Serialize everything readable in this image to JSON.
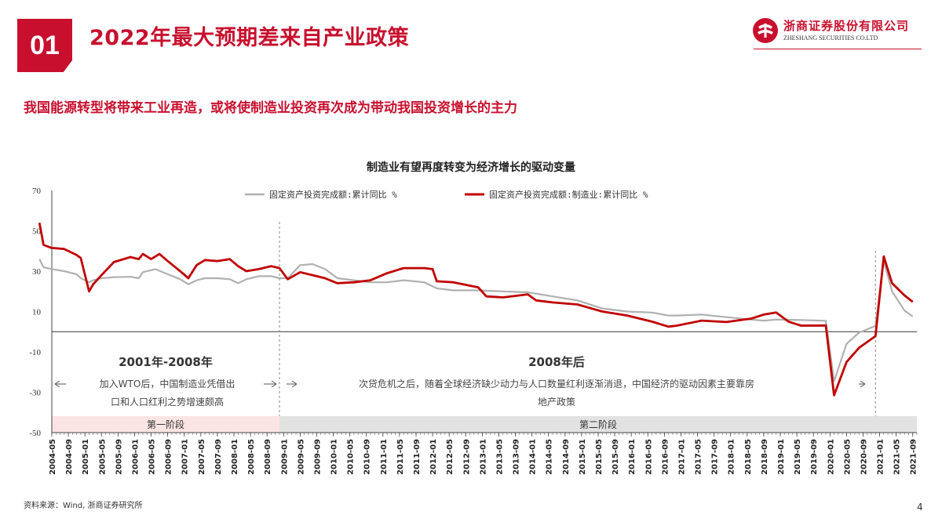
{
  "header": {
    "section_number": "01",
    "title": "2022年最大预期差来自产业政策",
    "logo_cn": "浙商证券股份有限公司",
    "logo_en": "ZHESHANG SECURITIES CO.LTD"
  },
  "subtitle": "我国能源转型将带来工业再造，或将使制造业投资再次成为带动我国投资增长的主力",
  "chart_data": {
    "type": "line",
    "title": "制造业有望再度转变为经济增长的驱动变量",
    "y_ticks": [
      70,
      50,
      30,
      10,
      -10,
      -30,
      -50
    ],
    "ylim": [
      -50,
      70
    ],
    "x_tick_labels": [
      "2004-05",
      "2004-09",
      "2005-01",
      "2005-05",
      "2005-09",
      "2006-01",
      "2006-05",
      "2006-09",
      "2007-01",
      "2007-05",
      "2007-09",
      "2008-01",
      "2008-05",
      "2008-09",
      "2009-01",
      "2009-05",
      "2009-09",
      "2010-01",
      "2010-05",
      "2010-09",
      "2011-01",
      "2011-05",
      "2011-09",
      "2012-01",
      "2012-05",
      "2012-09",
      "2013-01",
      "2013-05",
      "2013-09",
      "2014-01",
      "2014-05",
      "2014-09",
      "2015-01",
      "2015-05",
      "2015-09",
      "2016-01",
      "2016-05",
      "2016-09",
      "2017-01",
      "2017-05",
      "2017-09",
      "2018-01",
      "2018-05",
      "2018-09",
      "2019-01",
      "2019-05",
      "2019-09",
      "2020-01",
      "2020-05",
      "2020-09",
      "2021-01",
      "2021-05",
      "2021-09"
    ],
    "legend": "top",
    "series": [
      {
        "name": "固定资产投资完成额:累计同比 %",
        "color": "#b0b0b0",
        "points": [
          [
            "2004-02",
            36
          ],
          [
            "2004-03",
            32
          ],
          [
            "2004-05",
            31
          ],
          [
            "2004-08",
            30
          ],
          [
            "2004-11",
            28.5
          ],
          [
            "2004-12",
            26.5
          ],
          [
            "2005-02",
            24.5
          ],
          [
            "2005-03",
            25.5
          ],
          [
            "2005-05",
            26.5
          ],
          [
            "2005-08",
            27
          ],
          [
            "2005-12",
            27.2
          ],
          [
            "2006-02",
            26.5
          ],
          [
            "2006-03",
            29.5
          ],
          [
            "2006-06",
            31
          ],
          [
            "2006-09",
            28.5
          ],
          [
            "2006-12",
            26
          ],
          [
            "2007-02",
            23.5
          ],
          [
            "2007-04",
            25.5
          ],
          [
            "2007-06",
            26.5
          ],
          [
            "2007-09",
            26.5
          ],
          [
            "2007-12",
            26
          ],
          [
            "2008-02",
            24
          ],
          [
            "2008-04",
            26
          ],
          [
            "2008-07",
            27.5
          ],
          [
            "2008-10",
            27.5
          ],
          [
            "2008-12",
            26.5
          ],
          [
            "2009-02",
            26.5
          ],
          [
            "2009-05",
            33
          ],
          [
            "2009-08",
            33.5
          ],
          [
            "2009-11",
            31
          ],
          [
            "2010-02",
            26.5
          ],
          [
            "2010-06",
            25.5
          ],
          [
            "2010-10",
            24.5
          ],
          [
            "2011-02",
            24.5
          ],
          [
            "2011-06",
            25.5
          ],
          [
            "2011-11",
            24.5
          ],
          [
            "2012-02",
            21.5
          ],
          [
            "2012-06",
            20.5
          ],
          [
            "2012-12",
            20.5
          ],
          [
            "2013-06",
            20
          ],
          [
            "2013-12",
            19.5
          ],
          [
            "2014-06",
            17.5
          ],
          [
            "2014-12",
            15.5
          ],
          [
            "2015-06",
            11.5
          ],
          [
            "2015-12",
            10
          ],
          [
            "2016-06",
            9.5
          ],
          [
            "2016-10",
            8
          ],
          [
            "2016-12",
            8
          ],
          [
            "2017-06",
            8.5
          ],
          [
            "2017-12",
            7.2
          ],
          [
            "2018-06",
            6
          ],
          [
            "2018-09",
            5.5
          ],
          [
            "2018-12",
            6
          ],
          [
            "2019-06",
            5.8
          ],
          [
            "2019-12",
            5.4
          ],
          [
            "2020-02",
            -24.5
          ],
          [
            "2020-05",
            -6
          ],
          [
            "2020-08",
            -0.5
          ],
          [
            "2020-12",
            2.9
          ],
          [
            "2021-02",
            35
          ],
          [
            "2021-04",
            20
          ],
          [
            "2021-07",
            10.5
          ],
          [
            "2021-09",
            7.5
          ]
        ]
      },
      {
        "name": "固定资产投资完成额:制造业:累计同比 %",
        "color": "#c00000",
        "points": [
          [
            "2004-02",
            54
          ],
          [
            "2004-03",
            43
          ],
          [
            "2004-05",
            41.5
          ],
          [
            "2004-08",
            41
          ],
          [
            "2004-11",
            38
          ],
          [
            "2004-12",
            36.5
          ],
          [
            "2005-02",
            20
          ],
          [
            "2005-03",
            23.5
          ],
          [
            "2005-05",
            28
          ],
          [
            "2005-08",
            34.5
          ],
          [
            "2005-12",
            37
          ],
          [
            "2006-02",
            36
          ],
          [
            "2006-03",
            38.5
          ],
          [
            "2006-05",
            36
          ],
          [
            "2006-07",
            38.5
          ],
          [
            "2006-09",
            35
          ],
          [
            "2006-12",
            30
          ],
          [
            "2007-02",
            26.5
          ],
          [
            "2007-04",
            33
          ],
          [
            "2007-06",
            35.5
          ],
          [
            "2007-09",
            35
          ],
          [
            "2007-12",
            36
          ],
          [
            "2008-02",
            32.5
          ],
          [
            "2008-04",
            30
          ],
          [
            "2008-07",
            31
          ],
          [
            "2008-10",
            32.5
          ],
          [
            "2008-12",
            31.5
          ],
          [
            "2009-02",
            26
          ],
          [
            "2009-05",
            29.5
          ],
          [
            "2009-08",
            28
          ],
          [
            "2009-11",
            26.5
          ],
          [
            "2010-02",
            24
          ],
          [
            "2010-06",
            24.5
          ],
          [
            "2010-10",
            25.5
          ],
          [
            "2011-02",
            29
          ],
          [
            "2011-06",
            31.5
          ],
          [
            "2011-11",
            31.5
          ],
          [
            "2012-01",
            31
          ],
          [
            "2012-02",
            25
          ],
          [
            "2012-06",
            24.5
          ],
          [
            "2012-12",
            22
          ],
          [
            "2013-02",
            17.5
          ],
          [
            "2013-06",
            17
          ],
          [
            "2013-12",
            18.5
          ],
          [
            "2014-02",
            15.5
          ],
          [
            "2014-06",
            14.5
          ],
          [
            "2014-12",
            13.5
          ],
          [
            "2015-06",
            10
          ],
          [
            "2015-12",
            8
          ],
          [
            "2016-06",
            5
          ],
          [
            "2016-10",
            2.5
          ],
          [
            "2016-12",
            3
          ],
          [
            "2017-06",
            5.5
          ],
          [
            "2017-12",
            4.8
          ],
          [
            "2018-06",
            6.5
          ],
          [
            "2018-09",
            8.5
          ],
          [
            "2018-12",
            9.5
          ],
          [
            "2019-03",
            5
          ],
          [
            "2019-06",
            3
          ],
          [
            "2019-12",
            3.1
          ],
          [
            "2020-02",
            -31.5
          ],
          [
            "2020-05",
            -15
          ],
          [
            "2020-08",
            -8
          ],
          [
            "2020-12",
            -2.2
          ],
          [
            "2021-02",
            37.3
          ],
          [
            "2021-04",
            24
          ],
          [
            "2021-07",
            18
          ],
          [
            "2021-09",
            14.8
          ]
        ]
      }
    ],
    "divider_date": "2008-12",
    "divider_date_2": "2020-12",
    "annotations": {
      "period1_title": "2001年-2008年",
      "period1_text_line1": "加入WTO后，中国制造业凭借出",
      "period1_text_line2": "口和人口红利之势增速颇高",
      "period2_title": "2008年后",
      "period2_text_line1": "次贷危机之后，随着全球经济缺少动力与人口数量红利逐渐消退，中国经济的驱动因素主要靠房",
      "period2_text_line2": "地产政策",
      "stage1_label": "第一阶段",
      "stage2_label": "第二阶段",
      "stage1_color": "#fbe4e4",
      "stage2_color": "#e2e2e2"
    }
  },
  "footer": {
    "source": "资料来源：Wind, 浙商证券研究所",
    "page_number": "4"
  }
}
